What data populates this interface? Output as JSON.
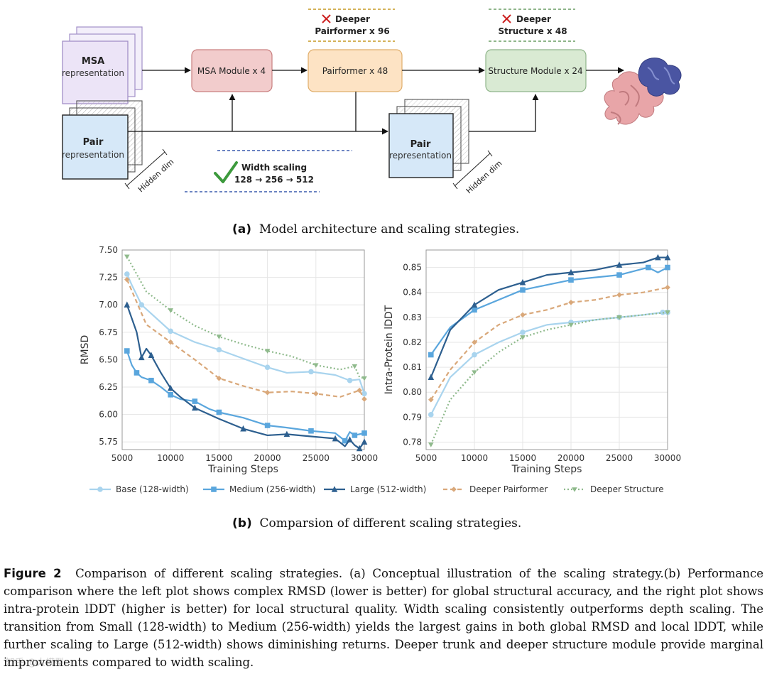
{
  "diagram": {
    "msa_rep": [
      "MSA",
      "representation"
    ],
    "pair_rep": [
      "Pair",
      "representation"
    ],
    "pair_rep2": [
      "Pair",
      "representation"
    ],
    "hidden_dim": "Hidden dim",
    "hidden_dim2": "Hidden dim",
    "msa_module": "MSA Module x 4",
    "pairformer": "Pairformer x 48",
    "structure_module": "Structure Module x 24",
    "deeper_pairformer": [
      "Deeper",
      "Pairformer x 96"
    ],
    "deeper_structure": [
      "Deeper",
      "Structure x 48"
    ],
    "width_scaling": [
      "Width scaling",
      "128 → 256 → 512"
    ],
    "colors": {
      "msa_fill": "#f2cccc",
      "msa_stroke": "#c98080",
      "pf_fill": "#fde3c4",
      "pf_stroke": "#e0ae6b",
      "sm_fill": "#d9ead3",
      "sm_stroke": "#8fb58a",
      "protein_pink": "#e8a5a8",
      "protein_blue": "#4a55a2",
      "check": "#3d9a3d",
      "cross": "#cc2222"
    }
  },
  "captions": {
    "a_label": "(a)",
    "a_text": "Model architecture and scaling strategies.",
    "b_label": "(b)",
    "b_text": "Comparsion of different scaling strategies."
  },
  "figure_caption": {
    "label": "Figure 2",
    "text": "Comparison of different scaling strategies. (a) Conceptual illustration of the scaling strategy.(b) Performance comparison where the left plot shows complex RMSD (lower is better) for global structural accuracy, and the right plot shows intra-protein lDDT (higher is better) for local structural quality. Width scaling consistently outperforms depth scaling. The transition from Small (128-width) to Medium (256-width) yields the largest gains in both global RMSD and local lDDT, while further scaling to Large (512-width) shows diminishing returns. Deeper trunk and deeper structure module provide marginal improvements compared to width scaling."
  },
  "watermark": "知乎 @大模型",
  "chart_data": [
    {
      "type": "line",
      "title": "",
      "xlabel": "Training Steps",
      "ylabel": "RMSD",
      "xlim": [
        5000,
        30000
      ],
      "ylim": [
        5.68,
        7.5
      ],
      "xticks": [
        5000,
        10000,
        15000,
        20000,
        25000,
        30000
      ],
      "yticks": [
        5.75,
        6.0,
        6.25,
        6.5,
        6.75,
        7.0,
        7.25,
        7.5
      ],
      "ytick_labels": [
        "5.75",
        "6.00",
        "6.25",
        "6.50",
        "6.75",
        "7.00",
        "7.25",
        "7.50"
      ],
      "grid": true,
      "series": [
        {
          "name": "Base (128-width)",
          "color": "#a9d4ee",
          "marker": "circle",
          "dash": "",
          "x": [
            5500,
            6000,
            7000,
            8000,
            10000,
            12500,
            15000,
            17500,
            20000,
            22000,
            24500,
            27000,
            28500,
            29500,
            30000
          ],
          "y": [
            7.28,
            7.18,
            7.0,
            6.92,
            6.76,
            6.66,
            6.59,
            6.51,
            6.43,
            6.38,
            6.39,
            6.36,
            6.31,
            6.32,
            6.19
          ]
        },
        {
          "name": "Medium (256-width)",
          "color": "#5aa6dd",
          "marker": "square",
          "dash": "",
          "x": [
            5500,
            6000,
            6500,
            7000,
            8000,
            9000,
            10000,
            11000,
            12500,
            14000,
            15000,
            17500,
            20000,
            22000,
            24500,
            27000,
            28000,
            28500,
            29000,
            29500,
            30000
          ],
          "y": [
            6.58,
            6.45,
            6.38,
            6.34,
            6.31,
            6.25,
            6.18,
            6.14,
            6.12,
            6.05,
            6.02,
            5.97,
            5.9,
            5.88,
            5.85,
            5.83,
            5.76,
            5.84,
            5.81,
            5.82,
            5.83
          ]
        },
        {
          "name": "Large (512-width)",
          "color": "#2d5f8f",
          "marker": "triangle",
          "dash": "",
          "x": [
            5500,
            6500,
            7000,
            7500,
            8000,
            9000,
            10000,
            11000,
            12500,
            15000,
            17500,
            20000,
            22000,
            24500,
            27000,
            28000,
            28500,
            29000,
            29500,
            30000
          ],
          "y": [
            7.0,
            6.75,
            6.52,
            6.6,
            6.54,
            6.38,
            6.24,
            6.16,
            6.06,
            5.96,
            5.87,
            5.81,
            5.82,
            5.8,
            5.78,
            5.71,
            5.77,
            5.72,
            5.69,
            5.75
          ]
        },
        {
          "name": "Deeper Pairformer",
          "color": "#d9a87a",
          "marker": "diamond",
          "dash": "6,4",
          "x": [
            5500,
            7500,
            10000,
            12500,
            15000,
            17500,
            20000,
            22500,
            25000,
            27500,
            29500,
            30000
          ],
          "y": [
            7.23,
            6.82,
            6.66,
            6.5,
            6.33,
            6.26,
            6.2,
            6.21,
            6.19,
            6.16,
            6.22,
            6.14
          ]
        },
        {
          "name": "Deeper Structure",
          "color": "#8fba8c",
          "marker": "tri-down",
          "dash": "2,3",
          "x": [
            5500,
            7500,
            10000,
            12500,
            15000,
            17500,
            20000,
            22500,
            25000,
            27500,
            29000,
            29500,
            30000
          ],
          "y": [
            7.44,
            7.12,
            6.95,
            6.81,
            6.71,
            6.64,
            6.58,
            6.53,
            6.45,
            6.41,
            6.44,
            6.34,
            6.33
          ]
        }
      ]
    },
    {
      "type": "line",
      "title": "",
      "xlabel": "Training Steps",
      "ylabel": "Intra-Protein lDDT",
      "xlim": [
        5000,
        30000
      ],
      "ylim": [
        0.777,
        0.857
      ],
      "xticks": [
        5000,
        10000,
        15000,
        20000,
        25000,
        30000
      ],
      "yticks": [
        0.78,
        0.79,
        0.8,
        0.81,
        0.82,
        0.83,
        0.84,
        0.85
      ],
      "ytick_labels": [
        "0.78",
        "0.79",
        "0.80",
        "0.81",
        "0.82",
        "0.83",
        "0.84",
        "0.85"
      ],
      "grid": true,
      "series": [
        {
          "name": "Base (128-width)",
          "color": "#a9d4ee",
          "marker": "circle",
          "dash": "",
          "x": [
            5500,
            7500,
            10000,
            12500,
            15000,
            17500,
            20000,
            22500,
            25000,
            27500,
            29500,
            30000
          ],
          "y": [
            0.791,
            0.806,
            0.815,
            0.82,
            0.824,
            0.827,
            0.828,
            0.829,
            0.83,
            0.831,
            0.832,
            0.832
          ]
        },
        {
          "name": "Medium (256-width)",
          "color": "#5aa6dd",
          "marker": "square",
          "dash": "",
          "x": [
            5500,
            7500,
            10000,
            12500,
            15000,
            17500,
            20000,
            22500,
            25000,
            27000,
            28000,
            29000,
            30000
          ],
          "y": [
            0.815,
            0.826,
            0.833,
            0.837,
            0.841,
            0.843,
            0.845,
            0.846,
            0.847,
            0.849,
            0.85,
            0.848,
            0.85
          ]
        },
        {
          "name": "Large (512-width)",
          "color": "#2d5f8f",
          "marker": "triangle",
          "dash": "",
          "x": [
            5500,
            7500,
            10000,
            12500,
            15000,
            17500,
            20000,
            22500,
            25000,
            27500,
            29000,
            30000
          ],
          "y": [
            0.806,
            0.825,
            0.835,
            0.841,
            0.844,
            0.847,
            0.848,
            0.849,
            0.851,
            0.852,
            0.854,
            0.854
          ]
        },
        {
          "name": "Deeper Pairformer",
          "color": "#d9a87a",
          "marker": "diamond",
          "dash": "6,4",
          "x": [
            5500,
            7500,
            10000,
            12500,
            15000,
            17500,
            20000,
            22500,
            25000,
            27500,
            30000
          ],
          "y": [
            0.797,
            0.809,
            0.82,
            0.827,
            0.831,
            0.833,
            0.836,
            0.837,
            0.839,
            0.84,
            0.842
          ]
        },
        {
          "name": "Deeper Structure",
          "color": "#8fba8c",
          "marker": "tri-down",
          "dash": "2,3",
          "x": [
            5500,
            7500,
            10000,
            12500,
            15000,
            17500,
            20000,
            22500,
            25000,
            27500,
            30000
          ],
          "y": [
            0.779,
            0.797,
            0.808,
            0.816,
            0.822,
            0.825,
            0.827,
            0.829,
            0.83,
            0.831,
            0.832
          ]
        }
      ]
    }
  ]
}
